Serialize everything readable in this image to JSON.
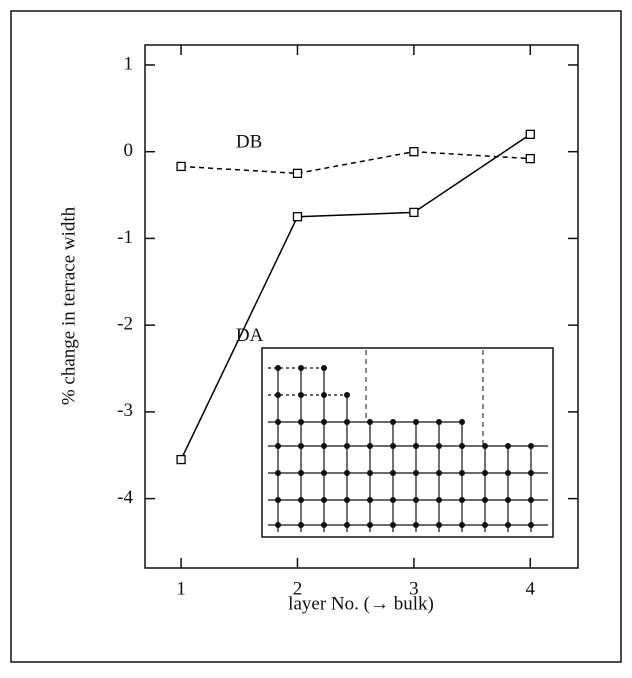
{
  "chart_data": {
    "type": "line",
    "xlabel": "layer No. (→ bulk)",
    "ylabel": "% change in terrace width",
    "x": [
      1,
      2,
      3,
      4
    ],
    "series": [
      {
        "name": "DA",
        "color": "#000000",
        "dash": false,
        "values": [
          -3.55,
          -0.75,
          -0.7,
          0.2
        ]
      },
      {
        "name": "DB",
        "color": "#000000",
        "dash": true,
        "values": [
          -0.17,
          -0.25,
          0.0,
          -0.08
        ]
      }
    ],
    "xlim": [
      0.69,
      4.41
    ],
    "ylim": [
      -4.8,
      1.23
    ],
    "xticks": [
      1,
      2,
      3,
      4
    ],
    "yticks": [
      -4,
      -3,
      -2,
      -1,
      0,
      1
    ]
  }
}
